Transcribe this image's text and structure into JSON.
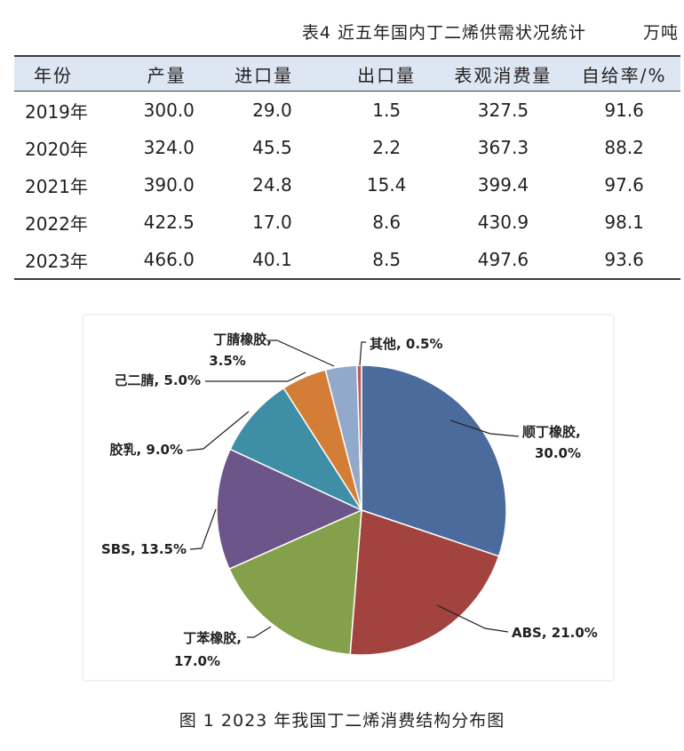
{
  "table": {
    "title": "表4  近五年国内丁二烯供需状况统计",
    "unit": "万吨",
    "headers": [
      "年份",
      "产量",
      "进口量",
      "出口量",
      "表观消费量",
      "自给率/%"
    ],
    "rows": [
      [
        "2019年",
        "300.0",
        "29.0",
        "1.5",
        "327.5",
        "91.6"
      ],
      [
        "2020年",
        "324.0",
        "45.5",
        "2.2",
        "367.3",
        "88.2"
      ],
      [
        "2021年",
        "390.0",
        "24.8",
        "15.4",
        "399.4",
        "97.6"
      ],
      [
        "2022年",
        "422.5",
        "17.0",
        "8.6",
        "430.9",
        "98.1"
      ],
      [
        "2023年",
        "466.0",
        "40.1",
        "8.5",
        "497.6",
        "93.6"
      ]
    ]
  },
  "chart_data": {
    "type": "pie",
    "title": "",
    "slices": [
      {
        "label": "顺丁橡胶,",
        "value": 30.0,
        "pct": "30.0%",
        "color": "#4a6b9b"
      },
      {
        "label": "ABS,",
        "value": 21.0,
        "pct": "21.0%",
        "color": "#a3433f"
      },
      {
        "label": "丁苯橡胶,",
        "value": 17.0,
        "pct": "17.0%",
        "color": "#85a04a"
      },
      {
        "label": "SBS,",
        "value": 13.5,
        "pct": "13.5%",
        "color": "#6c5589"
      },
      {
        "label": "胶乳,",
        "value": 9.0,
        "pct": "9.0%",
        "color": "#3e8ea5"
      },
      {
        "label": "己二腈,",
        "value": 5.0,
        "pct": "5.0%",
        "color": "#d47d36"
      },
      {
        "label": "丁腈橡胶,",
        "value": 3.5,
        "pct": "3.5%",
        "color": "#93a9cc"
      },
      {
        "label": "其他,",
        "value": 0.5,
        "pct": "0.5%",
        "color": "#b95a56"
      }
    ],
    "legend": "none",
    "data_labels": "outside-with-leader-lines"
  },
  "caption": "图 1  2023 年我国丁二烯消费结构分布图"
}
